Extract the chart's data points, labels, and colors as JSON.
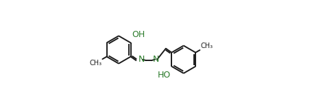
{
  "bg_color": "#ffffff",
  "line_color": "#1a1a1a",
  "oh_color": "#2a7a2a",
  "n_color": "#2a7a2a",
  "lw": 1.4,
  "dbo": 0.016,
  "font_size": 8.5,
  "figsize": [
    4.55,
    1.56
  ],
  "dpi": 100,
  "xlim": [
    -0.02,
    1.02
  ],
  "ylim": [
    0.02,
    1.0
  ]
}
